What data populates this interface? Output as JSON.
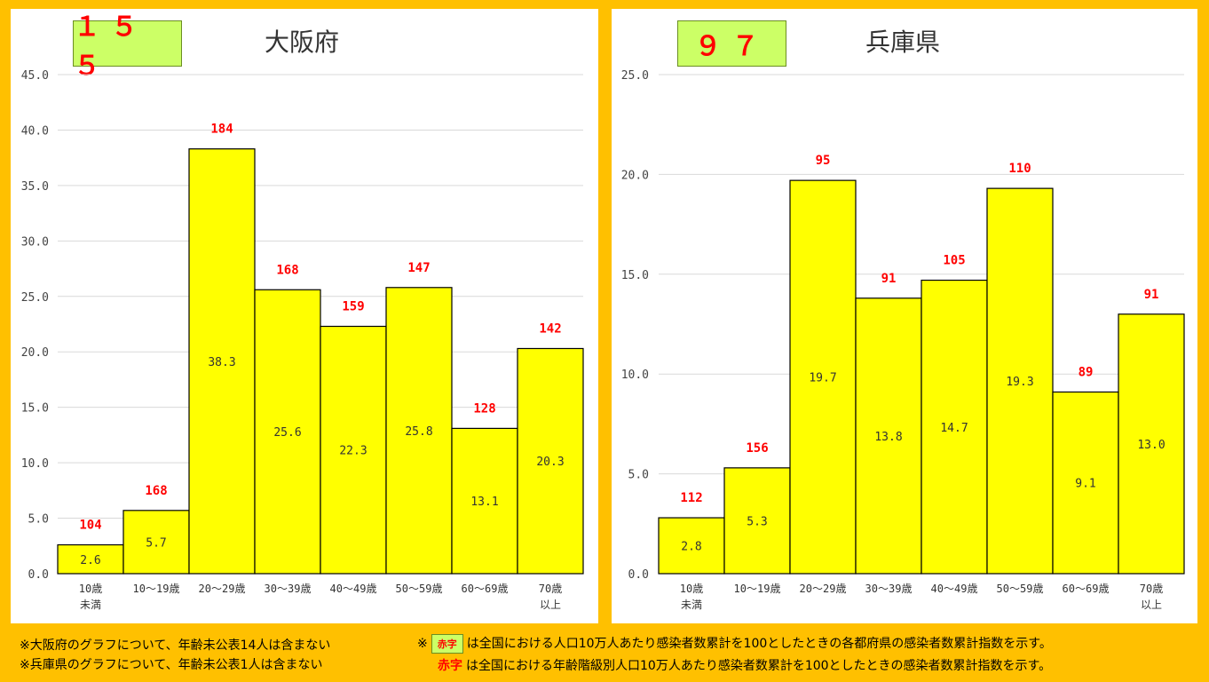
{
  "colors": {
    "background": "#FFC000",
    "bar": "#FFFF00",
    "label_red": "#FF0000",
    "index_box": "#CCFF66"
  },
  "chart_data": [
    {
      "type": "bar",
      "title": "大阪府",
      "index_value": "１５５",
      "categories": [
        [
          "10歳",
          "未満"
        ],
        [
          "10～19歳"
        ],
        [
          "20～29歳"
        ],
        [
          "30～39歳"
        ],
        [
          "40～49歳"
        ],
        [
          "50～59歳"
        ],
        [
          "60～69歳"
        ],
        [
          "70歳",
          "以上"
        ]
      ],
      "values": [
        2.6,
        5.7,
        38.3,
        25.6,
        22.3,
        25.8,
        13.1,
        20.3
      ],
      "value_labels": [
        "2.6",
        "5.7",
        "38.3",
        "25.6",
        "22.3",
        "25.8",
        "13.1",
        "20.3"
      ],
      "index_labels": [
        "104",
        "168",
        "184",
        "168",
        "159",
        "147",
        "128",
        "142"
      ],
      "ylim": [
        0,
        45
      ],
      "yticks": [
        "0.0",
        "5.0",
        "10.0",
        "15.0",
        "20.0",
        "25.0",
        "30.0",
        "35.0",
        "40.0",
        "45.0"
      ],
      "grid": true
    },
    {
      "type": "bar",
      "title": "兵庫県",
      "index_value": "９７",
      "categories": [
        [
          "10歳",
          "未満"
        ],
        [
          "10～19歳"
        ],
        [
          "20～29歳"
        ],
        [
          "30～39歳"
        ],
        [
          "40～49歳"
        ],
        [
          "50～59歳"
        ],
        [
          "60～69歳"
        ],
        [
          "70歳",
          "以上"
        ]
      ],
      "values": [
        2.8,
        5.3,
        19.7,
        13.8,
        14.7,
        19.3,
        9.1,
        13.0
      ],
      "value_labels": [
        "2.8",
        "5.3",
        "19.7",
        "13.8",
        "14.7",
        "19.3",
        "9.1",
        "13.0"
      ],
      "index_labels": [
        "112",
        "156",
        "95",
        "91",
        "105",
        "110",
        "89",
        "91"
      ],
      "ylim": [
        0,
        25
      ],
      "yticks": [
        "0.0",
        "5.0",
        "10.0",
        "15.0",
        "20.0",
        "25.0"
      ],
      "grid": true
    }
  ],
  "footer": {
    "note1": "※大阪府のグラフについて、年齢未公表14人は含まない",
    "note2": "※兵庫県のグラフについて、年齢未公表1人は含まない",
    "legend1_prefix": "※",
    "legend1_swatch": "赤字",
    "legend1_text": "は全国における人口10万人あたり感染者数累計を100としたときの各都府県の感染者数累計指数を示す。",
    "legend2_red": "赤字",
    "legend2_text": "は全国における年齢階級別人口10万人あたり感染者数累計を100としたときの感染者数累計指数を示す。"
  }
}
